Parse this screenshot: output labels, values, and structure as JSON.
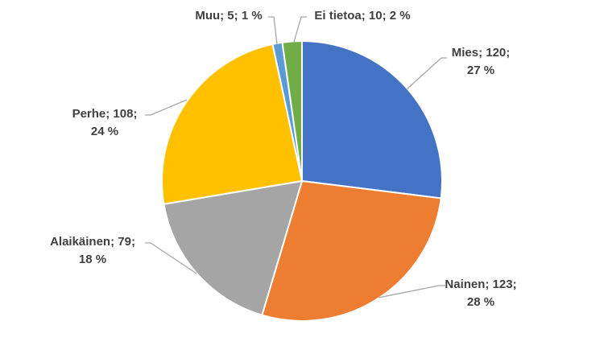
{
  "chart_data": {
    "type": "pie",
    "title": "",
    "slices": [
      {
        "name": "Mies",
        "value": 120,
        "percent": "27 %",
        "color": "#4472C4",
        "label_lines": [
          "Mies; 120;",
          "27 %"
        ]
      },
      {
        "name": "Nainen",
        "value": 123,
        "percent": "28 %",
        "color": "#ED7D31",
        "label_lines": [
          "Nainen; 123;",
          "28 %"
        ]
      },
      {
        "name": "Alaikäinen",
        "value": 79,
        "percent": "18 %",
        "color": "#A5A5A5",
        "label_lines": [
          "Alaikäinen; 79;",
          "18 %"
        ]
      },
      {
        "name": "Perhe",
        "value": 108,
        "percent": "24 %",
        "color": "#FFC000",
        "label_lines": [
          "Perhe; 108;",
          "24 %"
        ]
      },
      {
        "name": "Muu",
        "value": 5,
        "percent": "1 %",
        "color": "#5B9BD5",
        "label_lines": [
          "Muu; 5; 1 %"
        ]
      },
      {
        "name": "Ei tietoa",
        "value": 10,
        "percent": "2 %",
        "color": "#70AD47",
        "label_lines": [
          "Ei tietoa; 10; 2 %"
        ]
      }
    ],
    "start_angle_deg": 0,
    "direction": "clockwise",
    "labels_outside_with_leader_lines": true
  }
}
